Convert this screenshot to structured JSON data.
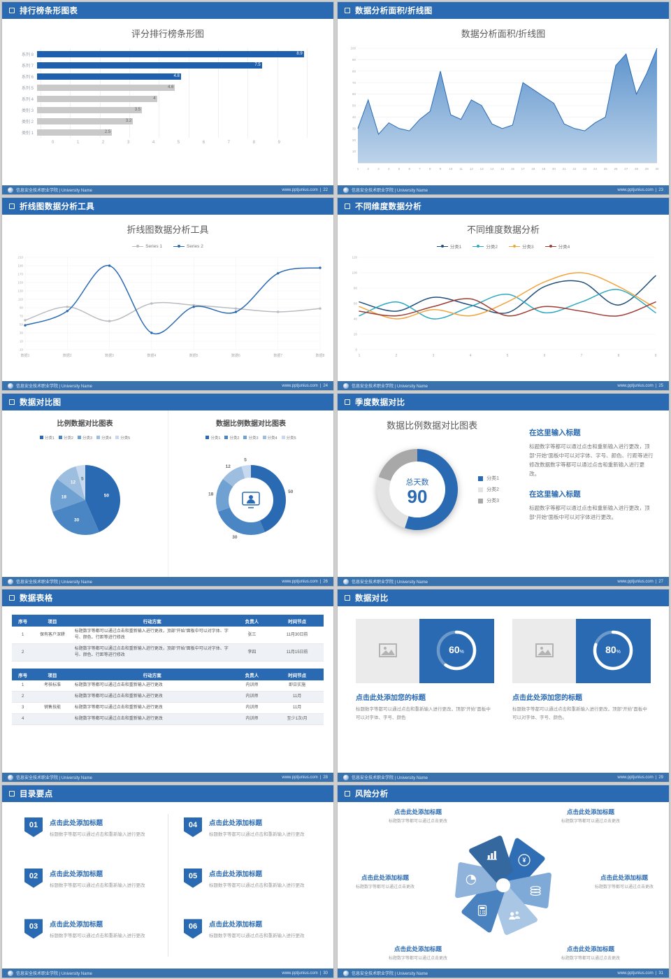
{
  "colors": {
    "accent": "#2a6ab2",
    "header_bar": "#2a6ab2",
    "footer_bar": "#3a72ae",
    "bar_blue": "#1e5fae",
    "bar_gray": "#c9c9c9"
  },
  "footer": {
    "org": "信息安全技术职业学院 | University Name",
    "site": "www.pptjunius.com"
  },
  "slides": {
    "s1": {
      "header": "排行榜条形图表",
      "page": "22",
      "chart": {
        "type": "bar",
        "title": "评分排行榜条形图",
        "categories": [
          "系列 8",
          "系列 7",
          "系列 6",
          "系列 5",
          "系列 4",
          "类别 3",
          "类别 2",
          "类别 1"
        ],
        "values": [
          8.9,
          7.5,
          4.8,
          4.6,
          4,
          3.5,
          3.2,
          2.5
        ],
        "highlight_count": 3,
        "xmax": 9,
        "x_ticks": [
          0,
          1,
          2,
          3,
          4,
          5,
          6,
          7,
          8,
          9
        ]
      }
    },
    "s2": {
      "header": "数据分析面积/折线图",
      "page": "23",
      "chart": {
        "type": "area",
        "title": "数据分析面积/折线图",
        "x_labels": [
          1,
          2,
          3,
          4,
          5,
          6,
          7,
          8,
          9,
          10,
          11,
          12,
          13,
          14,
          15,
          16,
          17,
          18,
          19,
          20,
          21,
          22,
          23,
          24,
          25,
          26,
          27,
          28,
          29,
          30
        ],
        "values": [
          30,
          55,
          25,
          35,
          30,
          28,
          38,
          45,
          80,
          42,
          38,
          55,
          50,
          34,
          30,
          33,
          70,
          64,
          58,
          52,
          34,
          30,
          28,
          35,
          40,
          85,
          95,
          60,
          78,
          100
        ],
        "y_ticks": [
          10,
          20,
          30,
          40,
          50,
          60,
          70,
          80,
          90,
          100
        ],
        "ymin": 0,
        "ymax": 100,
        "line_color": "#2a6ab2"
      }
    },
    "s3": {
      "header": "折线图数据分析工具",
      "page": "24",
      "chart": {
        "type": "line",
        "title": "折线图数据分析工具",
        "x_labels": [
          "数据1",
          "数据2",
          "数据3",
          "数据4",
          "数据5",
          "数据6",
          "数据7",
          "数据8"
        ],
        "series": [
          {
            "name": "Series 1",
            "color": "#b9bcc0",
            "values": [
              60,
              92,
              58,
              100,
              96,
              88,
              80,
              88
            ]
          },
          {
            "name": "Series 2",
            "color": "#2a6ab2",
            "values": [
              48,
              82,
              190,
              30,
              92,
              80,
              172,
              185
            ]
          }
        ],
        "y_ticks": [
          -10,
          10,
          30,
          50,
          70,
          90,
          110,
          130,
          150,
          170,
          190,
          210
        ],
        "ymin": -10,
        "ymax": 210
      }
    },
    "s4": {
      "header": "不同维度数据分析",
      "page": "25",
      "chart": {
        "type": "line",
        "title": "不同维度数据分析",
        "x_labels": [
          "1",
          "2",
          "3",
          "4",
          "5",
          "6",
          "7",
          "8",
          "9"
        ],
        "series": [
          {
            "name": "分类1",
            "color": "#1f4e79",
            "values": [
              62,
              50,
              68,
              58,
              48,
              82,
              88,
              58,
              96
            ]
          },
          {
            "name": "分类2",
            "color": "#2ca9c0",
            "values": [
              44,
              62,
              40,
              56,
              72,
              48,
              62,
              78,
              48
            ]
          },
          {
            "name": "分类3",
            "color": "#f2a33c",
            "values": [
              56,
              40,
              52,
              44,
              62,
              88,
              100,
              82,
              54
            ]
          },
          {
            "name": "分类4",
            "color": "#9e3b33",
            "values": [
              50,
              44,
              56,
              66,
              44,
              56,
              50,
              44,
              62
            ]
          }
        ],
        "y_ticks": [
          0,
          20,
          40,
          60,
          80,
          100,
          120
        ],
        "ymin": 0,
        "ymax": 120
      }
    },
    "s5": {
      "header": "数据对比图",
      "page": "26",
      "left": {
        "type": "pie",
        "title": "比例数据对比图表",
        "labels": [
          "分类1",
          "分类2",
          "分类3",
          "分类4",
          "分类5"
        ],
        "values": [
          50,
          30,
          18,
          12,
          5
        ],
        "colors": [
          "#2a6ab2",
          "#4a85c4",
          "#6fa1d2",
          "#9dbede",
          "#c6d9ee"
        ]
      },
      "right": {
        "type": "donut",
        "title": "数据比例数据对比图表",
        "labels": [
          "分类1",
          "分类2",
          "分类3",
          "分类4",
          "分类5"
        ],
        "values": [
          50,
          30,
          18,
          12,
          5
        ],
        "colors": [
          "#2a6ab2",
          "#4a85c4",
          "#6fa1d2",
          "#9dbede",
          "#c6d9ee"
        ]
      }
    },
    "s6": {
      "header": "季度数据对比",
      "page": "27",
      "chart": {
        "type": "donut",
        "title": "数据比例数据对比图表",
        "center_label": "总天数",
        "center_value": "90",
        "values": [
          55,
          25,
          20
        ],
        "colors": [
          "#2a6ab2",
          "#e3e3e3",
          "#a8a8a8"
        ],
        "legend": [
          "分类1",
          "分类2",
          "分类3"
        ]
      },
      "blocks": [
        {
          "heading": "在这里输入标题",
          "body": "标题数字等都可以通过点击和重新输入进行更改，顶部“开始”面板中可以对字体、字号、颜色、行距等进行修改数据数字等都可以通过点击和重新输入进行更改。"
        },
        {
          "heading": "在这里输入标题",
          "body": "标题数字等都可以通过点击和重新输入进行更改，顶部“开始”面板中可以对字体进行更改。"
        }
      ]
    },
    "s7": {
      "header": "数据表格",
      "page": "28",
      "table1": {
        "headers": [
          "序号",
          "项目",
          "行动方案",
          "负责人",
          "时间节点"
        ],
        "col_widths": [
          "7%",
          "12%",
          "52%",
          "12%",
          "17%"
        ],
        "rows": [
          [
            "1",
            "保有客户深耕",
            "标题数字等都可以通过点击和重新输入进行更改，顶部“开始”面板中可以对字体、字号、颜色、行距等进行修改",
            "张三",
            "11月30日前"
          ],
          [
            "2",
            "",
            "标题数字等都可以通过点击和重新输入进行更改，顶部“开始”面板中可以对字体、字号、颜色、行距等进行修改",
            "李四",
            "11月15日前"
          ]
        ]
      },
      "table2": {
        "headers": [
          "序号",
          "项目",
          "行动方案",
          "负责人",
          "时间节点"
        ],
        "col_widths": [
          "7%",
          "12%",
          "52%",
          "12%",
          "17%"
        ],
        "rows": [
          [
            "1",
            "考核标准",
            "标题数字等都可以通过点击和重新输入进行更改",
            "内训师",
            "即日实施"
          ],
          [
            "2",
            "",
            "标题数字等都可以通过点击和重新输入进行更改",
            "内训师",
            "11月"
          ],
          [
            "3",
            "销售技能",
            "标题数字等都可以通过点击和重新输入进行更改",
            "内训师",
            "11月"
          ],
          [
            "4",
            "",
            "标题数字等都可以通过点击和重新输入进行更改",
            "内训师",
            "至少1次/月"
          ]
        ]
      }
    },
    "s8": {
      "header": "数据对比",
      "page": "29",
      "cards": [
        {
          "pct": 60,
          "pct_label": "60",
          "title": "点击此处添加您的标题",
          "desc": "标题数字等都可以通过点击和重新输入进行更改，顶部“开始”面板中可以对字体、字号、颜色"
        },
        {
          "pct": 80,
          "pct_label": "80",
          "title": "点击此处添加您的标题",
          "desc": "标题数字等都可以通过点击和重新输入进行更改，顶部“开始”面板中可以对字体、字号、颜色。"
        }
      ]
    },
    "s9": {
      "header": "目录要点",
      "page": "30",
      "items": [
        {
          "num": "01",
          "title": "点击此处添加标题",
          "desc": "标题数字等都可以通过点击和重新输入进行更改"
        },
        {
          "num": "02",
          "title": "点击此处添加标题",
          "desc": "标题数字等都可以通过点击和重新输入进行更改"
        },
        {
          "num": "03",
          "title": "点击此处添加标题",
          "desc": "标题数字等都可以通过点击和重新输入进行更改"
        },
        {
          "num": "04",
          "title": "点击此处添加标题",
          "desc": "标题数字等都可以通过点击和重新输入进行更改"
        },
        {
          "num": "05",
          "title": "点击此处添加标题",
          "desc": "标题数字等都可以通过点击和重新输入进行更改"
        },
        {
          "num": "06",
          "title": "点击此处添加标题",
          "desc": "标题数字等都可以通过点击和重新输入进行更改"
        }
      ]
    },
    "s10": {
      "header": "风险分析",
      "page": "31",
      "petal_colors": [
        "#2f6eb4",
        "#7fa9d6",
        "#a9c6e4",
        "#4a82c0",
        "#8fb3da",
        "#35689f"
      ],
      "labels": [
        {
          "title": "点击此处添加标题",
          "desc": "标题数字等都可以通过点击更改"
        },
        {
          "title": "点击此处添加标题",
          "desc": "标题数字等都可以通过点击更改"
        },
        {
          "title": "点击此处添加标题",
          "desc": "标题数字等都可以通过点击更改"
        },
        {
          "title": "点击此处添加标题",
          "desc": "标题数字等都可以通过点击更改"
        },
        {
          "title": "点击此处添加标题",
          "desc": "标题数字等都可以通过点击更改"
        },
        {
          "title": "点击此处添加标题",
          "desc": "标题数字等都可以通过点击更改"
        }
      ]
    }
  }
}
